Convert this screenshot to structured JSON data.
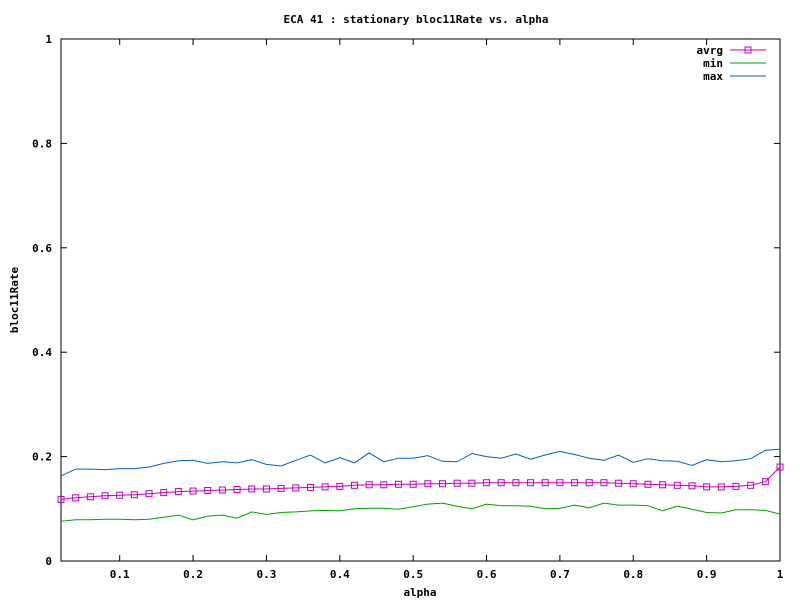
{
  "chart_data": {
    "type": "line",
    "title": "ECA 41 : stationary bloc11Rate vs. alpha",
    "xlabel": "alpha",
    "ylabel": "bloc11Rate",
    "xlim": [
      0.02,
      1.0
    ],
    "ylim": [
      0,
      1
    ],
    "xticks": [
      "0.1",
      "0.2",
      "0.3",
      "0.4",
      "0.5",
      "0.6",
      "0.7",
      "0.8",
      "0.9",
      "1"
    ],
    "yticks": [
      "0",
      "0.2",
      "0.4",
      "0.6",
      "0.8",
      "1"
    ],
    "grid": false,
    "legend_position": "top-right",
    "x": [
      0.02,
      0.04,
      0.06,
      0.08,
      0.1,
      0.12,
      0.14,
      0.16,
      0.18,
      0.2,
      0.22,
      0.24,
      0.26,
      0.28,
      0.3,
      0.32,
      0.34,
      0.36,
      0.38,
      0.4,
      0.42,
      0.44,
      0.46,
      0.48,
      0.5,
      0.52,
      0.54,
      0.56,
      0.58,
      0.6,
      0.62,
      0.64,
      0.66,
      0.68,
      0.7,
      0.72,
      0.74,
      0.76,
      0.78,
      0.8,
      0.82,
      0.84,
      0.86,
      0.88,
      0.9,
      0.92,
      0.94,
      0.96,
      0.98,
      1.0
    ],
    "series": [
      {
        "name": "avrg",
        "color": "#c000c0",
        "marker": "square",
        "values": [
          0.118,
          0.121,
          0.123,
          0.125,
          0.126,
          0.127,
          0.129,
          0.131,
          0.133,
          0.134,
          0.135,
          0.136,
          0.137,
          0.138,
          0.138,
          0.139,
          0.14,
          0.141,
          0.142,
          0.143,
          0.145,
          0.146,
          0.146,
          0.147,
          0.147,
          0.148,
          0.148,
          0.149,
          0.149,
          0.15,
          0.15,
          0.15,
          0.15,
          0.15,
          0.15,
          0.15,
          0.15,
          0.15,
          0.149,
          0.148,
          0.147,
          0.146,
          0.145,
          0.144,
          0.142,
          0.142,
          0.143,
          0.145,
          0.152,
          0.18
        ]
      },
      {
        "name": "min",
        "color": "#00a000",
        "marker": "none",
        "values": [
          0.076,
          0.079,
          0.079,
          0.08,
          0.08,
          0.079,
          0.08,
          0.084,
          0.088,
          0.079,
          0.086,
          0.088,
          0.082,
          0.094,
          0.089,
          0.093,
          0.094,
          0.096,
          0.097,
          0.096,
          0.1,
          0.101,
          0.101,
          0.099,
          0.104,
          0.109,
          0.111,
          0.105,
          0.1,
          0.109,
          0.106,
          0.106,
          0.105,
          0.1,
          0.101,
          0.107,
          0.102,
          0.111,
          0.107,
          0.107,
          0.106,
          0.096,
          0.105,
          0.099,
          0.093,
          0.092,
          0.098,
          0.098,
          0.097,
          0.09
        ]
      },
      {
        "name": "max",
        "color": "#0060c0",
        "marker": "none",
        "values": [
          0.163,
          0.176,
          0.176,
          0.175,
          0.177,
          0.177,
          0.18,
          0.187,
          0.192,
          0.193,
          0.187,
          0.19,
          0.188,
          0.194,
          0.185,
          0.182,
          0.193,
          0.203,
          0.188,
          0.198,
          0.188,
          0.207,
          0.19,
          0.197,
          0.197,
          0.202,
          0.191,
          0.19,
          0.206,
          0.2,
          0.197,
          0.205,
          0.195,
          0.203,
          0.21,
          0.204,
          0.197,
          0.193,
          0.203,
          0.189,
          0.196,
          0.192,
          0.191,
          0.183,
          0.194,
          0.19,
          0.192,
          0.196,
          0.212,
          0.214
        ]
      }
    ]
  }
}
